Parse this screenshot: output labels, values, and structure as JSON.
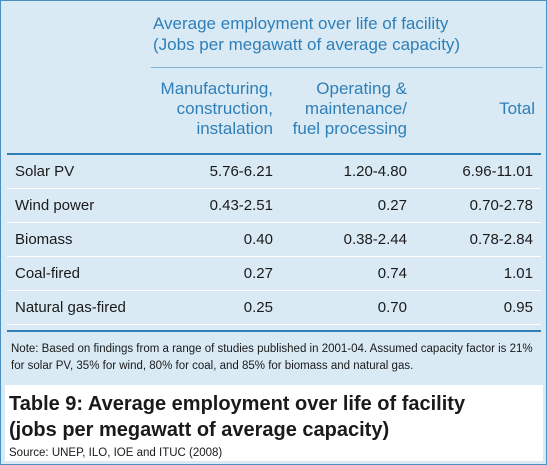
{
  "table": {
    "group_header": {
      "line1": "Average employment over life of facility",
      "line2": "(Jobs per megawatt of average capacity)"
    },
    "columns": {
      "manufacturing": [
        "Manufacturing,",
        "construction,",
        "instalation"
      ],
      "operating": [
        "Operating &",
        "maintenance/",
        "fuel processing"
      ],
      "total": [
        "Total"
      ]
    },
    "rows": [
      {
        "label": "Solar PV",
        "manufacturing": "5.76-6.21",
        "operating": "1.20-4.80",
        "total": "6.96-11.01"
      },
      {
        "label": "Wind power",
        "manufacturing": "0.43-2.51",
        "operating": "0.27",
        "total": "0.70-2.78"
      },
      {
        "label": "Biomass",
        "manufacturing": "0.40",
        "operating": "0.38-2.44",
        "total": "0.78-2.84"
      },
      {
        "label": "Coal-fired",
        "manufacturing": "0.27",
        "operating": "0.74",
        "total": "1.01"
      },
      {
        "label": "Natural gas-fired",
        "manufacturing": "0.25",
        "operating": "0.70",
        "total": "0.95"
      }
    ],
    "note": "Note: Based on findings from a range of studies published in 2001-04. Assumed capacity factor is 21% for solar PV, 35% for wind, 80% for coal, and 85% for biomass and natural gas."
  },
  "caption": {
    "line1": "Table 9: Average employment over life of facility",
    "line2": "(jobs per megawatt of average capacity)",
    "source": "Source: UNEP, ILO, IOE and ITUC (2008)"
  },
  "colors": {
    "panel_background": "#d9eaf5",
    "header_text": "#2f7fb7",
    "rule": "#2f7fb7"
  }
}
